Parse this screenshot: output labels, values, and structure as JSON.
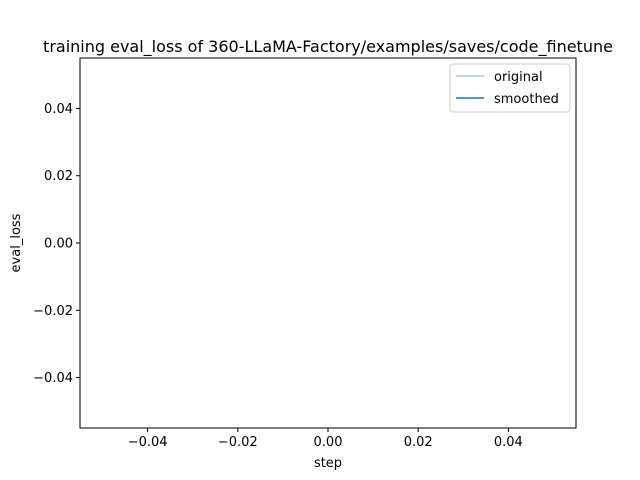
{
  "chart_data": {
    "type": "line",
    "title": "training eval_loss of 360-LLaMA-Factory/examples/saves/code_finetune",
    "xlabel": "step",
    "ylabel": "eval_loss",
    "xlim": [
      -0.055,
      0.055
    ],
    "ylim": [
      -0.055,
      0.055
    ],
    "x_ticks": [
      -0.04,
      -0.02,
      0.0,
      0.02,
      0.04
    ],
    "y_ticks": [
      -0.04,
      -0.02,
      0.0,
      0.02,
      0.04
    ],
    "x_tick_labels": [
      "−0.04",
      "−0.02",
      "0.00",
      "0.02",
      "0.04"
    ],
    "y_tick_labels": [
      "−0.04",
      "−0.02",
      "0.00",
      "0.02",
      "0.04"
    ],
    "grid": false,
    "legend_position": "top-right",
    "series": [
      {
        "name": "original",
        "color": "#a6cbe8",
        "x": [],
        "y": []
      },
      {
        "name": "smoothed",
        "color": "#1f77b4",
        "x": [],
        "y": []
      }
    ]
  }
}
